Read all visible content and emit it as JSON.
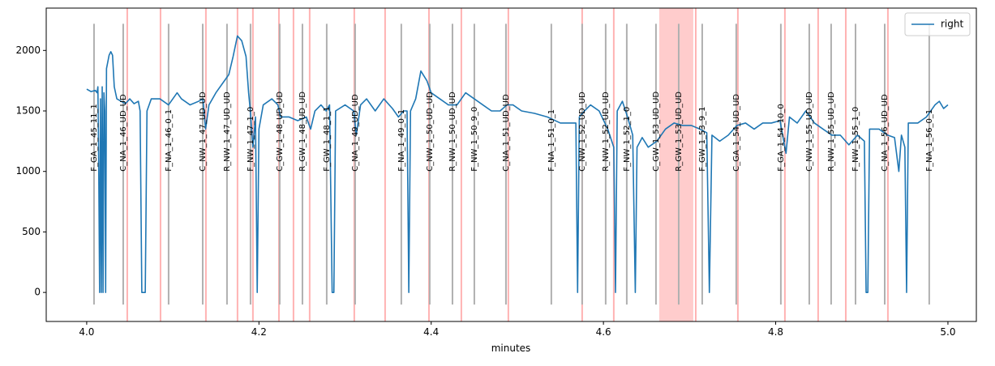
{
  "chart_data": {
    "type": "line",
    "xlabel": "minutes",
    "legend": "upper right",
    "x": [
      4.0,
      4.005,
      4.01,
      4.012,
      4.013,
      4.014,
      4.015,
      4.016,
      4.017,
      4.018,
      4.019,
      4.02,
      4.021,
      4.022,
      4.023,
      4.026,
      4.028,
      4.03,
      4.032,
      4.035,
      4.04,
      4.045,
      4.05,
      4.055,
      4.06,
      4.062,
      4.064,
      4.068,
      4.07,
      4.075,
      4.085,
      4.095,
      4.1,
      4.105,
      4.11,
      4.12,
      4.13,
      4.135,
      4.138,
      4.142,
      4.15,
      4.16,
      4.165,
      4.17,
      4.175,
      4.18,
      4.185,
      4.188,
      4.19,
      4.193,
      4.196,
      4.198,
      4.2,
      4.205,
      4.215,
      4.222,
      4.225,
      4.235,
      4.245,
      4.255,
      4.26,
      4.265,
      4.272,
      4.278,
      4.282,
      4.285,
      4.287,
      4.289,
      4.3,
      4.31,
      4.313,
      4.318,
      4.325,
      4.335,
      4.345,
      4.355,
      4.362,
      4.368,
      4.372,
      4.374,
      4.376,
      4.382,
      4.388,
      4.395,
      4.4,
      4.41,
      4.42,
      4.43,
      4.44,
      4.45,
      4.46,
      4.47,
      4.48,
      4.488,
      4.495,
      4.505,
      4.52,
      4.535,
      4.55,
      4.56,
      4.568,
      4.57,
      4.572,
      4.578,
      4.585,
      4.595,
      4.605,
      4.612,
      4.614,
      4.616,
      4.622,
      4.628,
      4.634,
      4.637,
      4.639,
      4.645,
      4.652,
      4.662,
      4.672,
      4.682,
      4.692,
      4.702,
      4.712,
      4.72,
      4.723,
      4.726,
      4.735,
      4.745,
      4.755,
      4.765,
      4.775,
      4.785,
      4.795,
      4.805,
      4.812,
      4.816,
      4.825,
      4.835,
      4.845,
      4.855,
      4.865,
      4.875,
      4.885,
      4.895,
      4.903,
      4.905,
      4.907,
      4.909,
      4.92,
      4.93,
      4.938,
      4.943,
      4.946,
      4.95,
      4.952,
      4.954,
      4.965,
      4.975,
      4.985,
      4.99,
      4.995,
      5.0
    ],
    "series": [
      {
        "name": "right",
        "color": "#1f77b4",
        "values": [
          1680,
          1660,
          1670,
          1650,
          1700,
          1000,
          0,
          1600,
          0,
          1700,
          0,
          1650,
          1500,
          0,
          1850,
          1960,
          1990,
          1960,
          1700,
          1600,
          1580,
          1560,
          1600,
          1560,
          1580,
          1500,
          0,
          0,
          1500,
          1600,
          1600,
          1550,
          1600,
          1650,
          1600,
          1550,
          1580,
          1600,
          1350,
          1550,
          1650,
          1750,
          1800,
          1950,
          2120,
          2080,
          1950,
          1650,
          1500,
          1200,
          1450,
          0,
          1350,
          1550,
          1600,
          1550,
          1450,
          1450,
          1420,
          1450,
          1350,
          1500,
          1550,
          1500,
          1550,
          0,
          0,
          1500,
          1550,
          1500,
          1300,
          1550,
          1600,
          1500,
          1600,
          1520,
          1450,
          1500,
          1500,
          0,
          1500,
          1600,
          1830,
          1750,
          1650,
          1600,
          1550,
          1550,
          1650,
          1600,
          1550,
          1500,
          1500,
          1550,
          1550,
          1500,
          1480,
          1450,
          1400,
          1400,
          1400,
          0,
          1450,
          1500,
          1550,
          1500,
          1350,
          1200,
          0,
          1500,
          1580,
          1450,
          1300,
          0,
          1200,
          1280,
          1200,
          1250,
          1350,
          1400,
          1380,
          1380,
          1350,
          1320,
          0,
          1300,
          1250,
          1300,
          1380,
          1400,
          1350,
          1400,
          1400,
          1420,
          1150,
          1450,
          1400,
          1500,
          1400,
          1350,
          1300,
          1300,
          1220,
          1300,
          1250,
          0,
          0,
          1350,
          1350,
          1300,
          1280,
          1000,
          1300,
          1200,
          0,
          1400,
          1400,
          1450,
          1550,
          1580,
          1520,
          1550
        ]
      }
    ],
    "markers": [
      {
        "x": 4.0085,
        "label": "F_GA_1_45_11_1"
      },
      {
        "x": 4.0424,
        "label": "C_NA_1_46_UD_UD"
      },
      {
        "x": 4.0951,
        "label": "F_NA_1_46_0_1"
      },
      {
        "x": 4.1347,
        "label": "C_NW_1_47_UD_UD"
      },
      {
        "x": 4.1629,
        "label": "R_NW_1_47_UD_UD"
      },
      {
        "x": 4.1902,
        "label": "F_NW_1_47_1_0"
      },
      {
        "x": 4.2241,
        "label": "C_GW_1_48_UD_UD"
      },
      {
        "x": 4.2505,
        "label": "R_GW_1_48_UD_UD"
      },
      {
        "x": 4.2787,
        "label": "F_GW_1_48_1_1"
      },
      {
        "x": 4.3117,
        "label": "C_NA_1_49_UD_UD"
      },
      {
        "x": 4.3653,
        "label": "F_NA_1_49_0_1"
      },
      {
        "x": 4.3983,
        "label": "C_NW_1_50_UD_UD"
      },
      {
        "x": 4.4247,
        "label": "R_NW_1_50_UD_UD"
      },
      {
        "x": 4.4501,
        "label": "F_NW_1_50_9_0"
      },
      {
        "x": 4.4868,
        "label": "C_NA_1_51_UD_UD"
      },
      {
        "x": 4.5395,
        "label": "F_NA_1_51_0_1"
      },
      {
        "x": 4.5753,
        "label": "C_NW_1_52_UD_UD"
      },
      {
        "x": 4.6026,
        "label": "R_NW_1_52_UD_UD"
      },
      {
        "x": 4.6271,
        "label": "F_NW_1_52_1_0"
      },
      {
        "x": 4.661,
        "label": "C_GW_1_53_UD_UD"
      },
      {
        "x": 4.6874,
        "label": "R_GW_1_53_UD_UD"
      },
      {
        "x": 4.7147,
        "label": "F_GW_1_53_9_1"
      },
      {
        "x": 4.7542,
        "label": "C_GA_1_54_UD_UD"
      },
      {
        "x": 4.806,
        "label": "F_GA_1_54_10_0"
      },
      {
        "x": 4.839,
        "label": "C_NW_1_55_UD_UD"
      },
      {
        "x": 4.8644,
        "label": "R_NW_1_55_UD_UD"
      },
      {
        "x": 4.8927,
        "label": "F_NW_1_55_1_0"
      },
      {
        "x": 4.9266,
        "label": "C_NA_1_56_UD_UD"
      },
      {
        "x": 4.9783,
        "label": "F_NA_1_56_0_1"
      }
    ],
    "marker_color": "#b0b0b0",
    "marker_range": [
      -100,
      2220
    ],
    "marker_label_y": 1000,
    "red_lines": [
      4.0471,
      4.0857,
      4.1384,
      4.1751,
      4.193,
      4.2232,
      4.2401,
      4.2589,
      4.3107,
      4.3465,
      4.3974,
      4.435,
      4.4896,
      4.5753,
      4.612,
      4.7072,
      4.7561,
      4.8107,
      4.8493,
      4.8814,
      4.9303
    ],
    "red_spans": [
      [
        4.6648,
        4.7043
      ]
    ],
    "red_color": "#ffb3b3",
    "span_color": "#ffcccc",
    "xlim": [
      3.953,
      5.033
    ],
    "ylim": [
      -240,
      2350
    ],
    "xticks": [
      {
        "value": 4.0,
        "label": "4.0"
      },
      4.2,
      4.4,
      4.6,
      4.8,
      {
        "value": 5.0,
        "label": "5.0"
      }
    ],
    "yticks": [
      0,
      500,
      1000,
      1500,
      2000
    ]
  }
}
